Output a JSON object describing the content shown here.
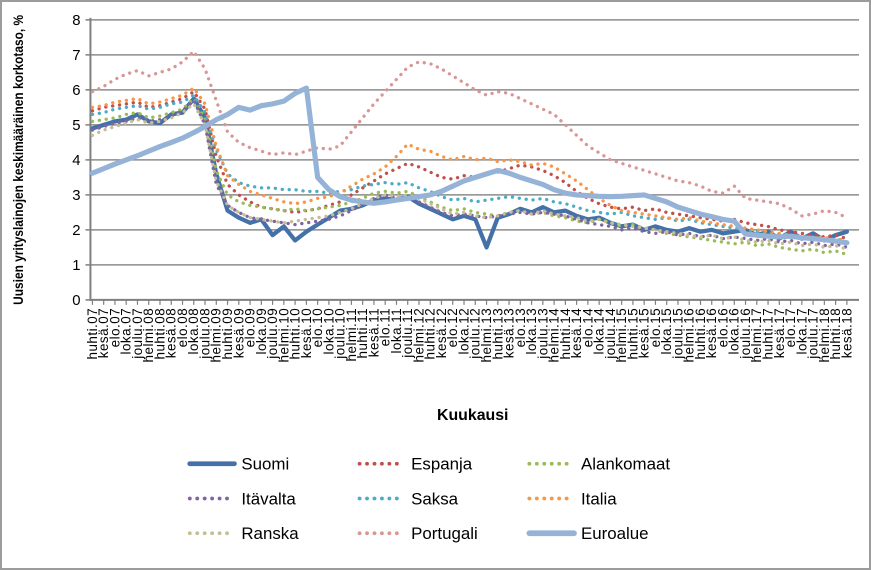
{
  "frame": {
    "background": "#ffffff",
    "border_color": "#9c9c9c"
  },
  "chart_data": {
    "type": "line",
    "title": "",
    "ylabel": "Uusien yrityslainojen keskimääräinen korkotaso, %",
    "xlabel": "Kuukausi",
    "ylim": [
      0,
      8
    ],
    "yticks": [
      0,
      1,
      2,
      3,
      4,
      5,
      6,
      7,
      8
    ],
    "grid": true,
    "gridline_color": "#8c8c8c",
    "axis_color": "#7f7f7f",
    "text_color": "#000000",
    "legend_position": "bottom",
    "categories": [
      "huhti.07",
      "kesä.07",
      "elo.07",
      "loka.07",
      "joulu.07",
      "helmi.08",
      "huhti.08",
      "kesä.08",
      "elo.08",
      "loka.08",
      "joulu.08",
      "helmi.09",
      "huhti.09",
      "kesä.09",
      "elo.09",
      "loka.09",
      "joulu.09",
      "helmi.10",
      "huhti.10",
      "kesä.10",
      "elo.10",
      "loka.10",
      "joulu.10",
      "helmi.11",
      "huhti.11",
      "kesä.11",
      "elo.11",
      "loka.11",
      "joulu.11",
      "helmi.12",
      "huhti.12",
      "kesä.12",
      "elo.12",
      "loka.12",
      "joulu.12",
      "helmi.13",
      "huhti.13",
      "kesä.13",
      "elo.13",
      "loka.13",
      "joulu.13",
      "helmi.14",
      "huhti.14",
      "kesä.14",
      "elo.14",
      "loka.14",
      "joulu.14",
      "helmi.15",
      "huhti.15",
      "kesä.15",
      "elo.15",
      "loka.15",
      "joulu.15",
      "helmi.16",
      "huhti.16",
      "kesä.16",
      "elo.16",
      "loka.16",
      "joulu.16",
      "helmi.17",
      "huhti.17",
      "kesä.17",
      "elo.17",
      "loka.17",
      "joulu.17",
      "helmi.18",
      "huhti.18",
      "kesä.18"
    ],
    "series": [
      {
        "name": "Suomi",
        "color": "#4472a8",
        "line_style": "solid",
        "width": 4.3,
        "values": [
          4.9,
          5.0,
          5.1,
          5.15,
          5.3,
          5.1,
          5.05,
          5.3,
          5.35,
          5.75,
          5.2,
          3.6,
          2.55,
          2.35,
          2.2,
          2.3,
          1.85,
          2.1,
          1.7,
          1.95,
          2.15,
          2.35,
          2.55,
          2.6,
          2.7,
          2.85,
          2.9,
          2.85,
          2.95,
          2.75,
          2.6,
          2.45,
          2.3,
          2.4,
          2.3,
          1.5,
          2.35,
          2.45,
          2.6,
          2.5,
          2.65,
          2.5,
          2.55,
          2.4,
          2.3,
          2.35,
          2.2,
          2.1,
          2.15,
          2.0,
          2.1,
          2.0,
          1.95,
          2.05,
          1.95,
          2.0,
          1.9,
          1.95,
          2.0,
          1.85,
          1.95,
          1.75,
          1.95,
          1.75,
          1.9,
          1.7,
          1.85,
          1.95
        ]
      },
      {
        "name": "Espanja",
        "color": "#c0504d",
        "line_style": "dotted",
        "width": 3.3,
        "values": [
          5.4,
          5.5,
          5.55,
          5.6,
          5.65,
          5.5,
          5.55,
          5.65,
          5.75,
          5.95,
          5.45,
          4.1,
          3.3,
          3.0,
          2.8,
          2.65,
          2.6,
          2.55,
          2.5,
          2.55,
          2.6,
          2.7,
          2.8,
          3.0,
          3.2,
          3.4,
          3.6,
          3.75,
          3.9,
          3.8,
          3.65,
          3.5,
          3.45,
          3.55,
          3.5,
          3.6,
          3.65,
          3.75,
          3.85,
          3.8,
          3.7,
          3.55,
          3.35,
          3.1,
          2.9,
          2.75,
          2.65,
          2.6,
          2.65,
          2.55,
          2.6,
          2.5,
          2.45,
          2.4,
          2.35,
          2.3,
          2.25,
          2.3,
          2.2,
          2.15,
          2.1,
          2.0,
          1.95,
          1.9,
          1.85,
          1.8,
          1.85,
          1.75
        ]
      },
      {
        "name": "Alankomaat",
        "color": "#9bbb59",
        "line_style": "dotted",
        "width": 3.3,
        "values": [
          5.1,
          5.15,
          5.2,
          5.3,
          5.35,
          5.2,
          5.25,
          5.35,
          5.45,
          5.75,
          5.15,
          3.7,
          3.0,
          2.8,
          2.7,
          2.65,
          2.6,
          2.55,
          2.6,
          2.55,
          2.6,
          2.65,
          2.7,
          2.8,
          2.9,
          3.05,
          3.1,
          3.05,
          3.1,
          2.95,
          2.8,
          2.65,
          2.55,
          2.6,
          2.5,
          2.45,
          2.4,
          2.5,
          2.55,
          2.45,
          2.5,
          2.4,
          2.35,
          2.25,
          2.2,
          2.3,
          2.2,
          2.1,
          2.15,
          2.05,
          2.0,
          1.9,
          1.85,
          1.8,
          1.75,
          1.7,
          1.65,
          1.6,
          1.65,
          1.55,
          1.6,
          1.5,
          1.45,
          1.4,
          1.45,
          1.35,
          1.4,
          1.3
        ]
      },
      {
        "name": "Itävalta",
        "color": "#8064a2",
        "line_style": "dotted",
        "width": 3.3,
        "values": [
          4.85,
          4.95,
          5.05,
          5.1,
          5.2,
          5.1,
          5.15,
          5.25,
          5.4,
          5.7,
          5.0,
          3.3,
          2.7,
          2.5,
          2.35,
          2.3,
          2.25,
          2.2,
          2.15,
          2.2,
          2.25,
          2.3,
          2.4,
          2.55,
          2.75,
          2.9,
          3.0,
          2.9,
          2.95,
          2.8,
          2.65,
          2.5,
          2.4,
          2.45,
          2.4,
          2.35,
          2.4,
          2.45,
          2.5,
          2.45,
          2.5,
          2.45,
          2.4,
          2.3,
          2.2,
          2.15,
          2.1,
          2.0,
          2.05,
          1.95,
          1.9,
          1.95,
          1.85,
          1.9,
          1.8,
          1.85,
          1.75,
          1.8,
          1.75,
          1.7,
          1.75,
          1.65,
          1.7,
          1.6,
          1.65,
          1.55,
          1.6,
          1.5
        ]
      },
      {
        "name": "Saksa",
        "color": "#4bacc6",
        "line_style": "dotted",
        "width": 3.3,
        "values": [
          5.3,
          5.35,
          5.45,
          5.5,
          5.55,
          5.45,
          5.5,
          5.6,
          5.65,
          5.85,
          5.35,
          4.3,
          3.6,
          3.35,
          3.25,
          3.2,
          3.2,
          3.15,
          3.15,
          3.1,
          3.1,
          3.05,
          3.1,
          3.15,
          3.25,
          3.3,
          3.35,
          3.3,
          3.35,
          3.2,
          3.1,
          2.95,
          2.85,
          2.9,
          2.8,
          2.85,
          2.9,
          2.95,
          2.9,
          2.85,
          2.9,
          2.8,
          2.75,
          2.65,
          2.55,
          2.5,
          2.45,
          2.5,
          2.4,
          2.35,
          2.3,
          2.35,
          2.25,
          2.3,
          2.2,
          2.15,
          2.1,
          2.05,
          2.0,
          1.95,
          1.9,
          1.85,
          1.8,
          1.75,
          1.8,
          1.7,
          1.75,
          1.65
        ]
      },
      {
        "name": "Italia",
        "color": "#f79646",
        "line_style": "dotted",
        "width": 3.3,
        "values": [
          5.5,
          5.55,
          5.65,
          5.7,
          5.75,
          5.6,
          5.65,
          5.75,
          5.85,
          6.05,
          5.6,
          4.4,
          3.55,
          3.3,
          3.1,
          3.0,
          2.9,
          2.8,
          2.75,
          2.8,
          2.9,
          2.95,
          3.05,
          3.25,
          3.45,
          3.6,
          3.8,
          4.1,
          4.45,
          4.3,
          4.25,
          4.1,
          4.0,
          4.1,
          4.0,
          4.05,
          3.95,
          4.0,
          3.95,
          3.85,
          3.9,
          3.8,
          3.6,
          3.4,
          3.15,
          2.9,
          2.7,
          2.55,
          2.5,
          2.45,
          2.4,
          2.35,
          2.3,
          2.35,
          2.25,
          2.2,
          2.15,
          2.1,
          2.05,
          2.0,
          1.95,
          1.9,
          1.85,
          1.8,
          1.75,
          1.8,
          1.7,
          1.75
        ]
      },
      {
        "name": "Ranska",
        "color": "#c4bd97",
        "line_style": "dotted",
        "width": 3.3,
        "values": [
          4.7,
          4.85,
          4.95,
          5.05,
          5.15,
          5.05,
          5.1,
          5.2,
          5.35,
          5.6,
          5.0,
          3.4,
          2.7,
          2.5,
          2.35,
          2.3,
          2.25,
          2.2,
          2.25,
          2.3,
          2.35,
          2.4,
          2.5,
          2.6,
          2.75,
          2.9,
          3.0,
          2.95,
          3.0,
          2.9,
          2.75,
          2.6,
          2.45,
          2.5,
          2.4,
          2.35,
          2.4,
          2.5,
          2.55,
          2.45,
          2.55,
          2.45,
          2.4,
          2.35,
          2.25,
          2.3,
          2.2,
          2.15,
          2.1,
          2.05,
          2.0,
          1.95,
          1.9,
          1.85,
          1.8,
          1.85,
          1.75,
          1.8,
          1.7,
          1.65,
          1.7,
          1.6,
          1.65,
          1.55,
          1.6,
          1.5,
          1.55,
          1.45
        ]
      },
      {
        "name": "Portugali",
        "color": "#d99694",
        "line_style": "dotted",
        "width": 3.3,
        "values": [
          5.95,
          6.1,
          6.3,
          6.45,
          6.55,
          6.4,
          6.5,
          6.6,
          6.8,
          7.1,
          6.6,
          5.7,
          4.8,
          4.5,
          4.35,
          4.25,
          4.15,
          4.2,
          4.15,
          4.25,
          4.35,
          4.3,
          4.4,
          4.8,
          5.2,
          5.6,
          5.95,
          6.3,
          6.65,
          6.8,
          6.75,
          6.6,
          6.4,
          6.2,
          6.0,
          5.85,
          5.95,
          5.9,
          5.75,
          5.6,
          5.45,
          5.3,
          5.0,
          4.7,
          4.4,
          4.2,
          4.0,
          3.9,
          3.8,
          3.7,
          3.6,
          3.5,
          3.4,
          3.35,
          3.25,
          3.1,
          3.05,
          3.25,
          2.9,
          2.85,
          2.8,
          2.75,
          2.6,
          2.4,
          2.45,
          2.55,
          2.5,
          2.35
        ]
      },
      {
        "name": "Euroalue",
        "color": "#95b3d7",
        "line_style": "solid",
        "width": 5.2,
        "values": [
          3.62,
          3.75,
          3.88,
          4.0,
          4.12,
          4.25,
          4.38,
          4.5,
          4.62,
          4.78,
          4.95,
          5.15,
          5.3,
          5.5,
          5.42,
          5.55,
          5.6,
          5.68,
          5.9,
          6.05,
          3.5,
          3.15,
          2.95,
          2.85,
          2.8,
          2.76,
          2.8,
          2.85,
          2.9,
          2.95,
          3.0,
          3.1,
          3.25,
          3.4,
          3.5,
          3.6,
          3.7,
          3.62,
          3.5,
          3.4,
          3.3,
          3.15,
          3.05,
          3.0,
          2.98,
          2.96,
          2.95,
          2.96,
          2.98,
          3.0,
          2.9,
          2.8,
          2.65,
          2.55,
          2.45,
          2.38,
          2.3,
          2.25,
          1.88,
          1.85,
          1.82,
          1.8,
          1.82,
          1.78,
          1.75,
          1.72,
          1.68,
          1.63
        ]
      }
    ]
  }
}
